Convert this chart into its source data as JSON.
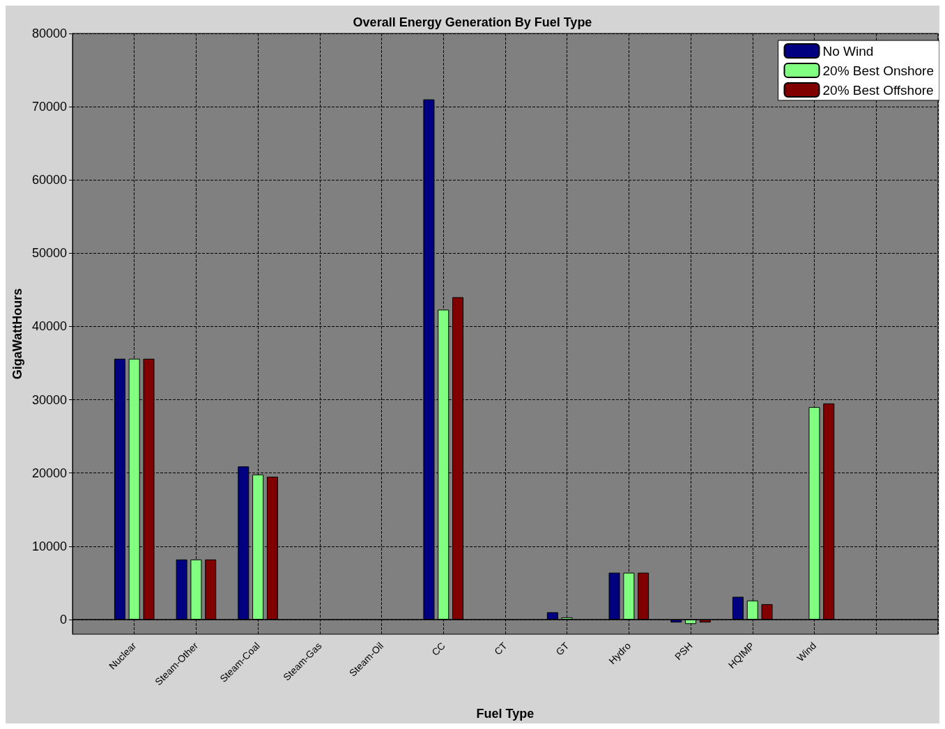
{
  "chart_data": {
    "type": "bar",
    "title": "Overall Energy Generation By Fuel Type",
    "xlabel": "Fuel Type",
    "ylabel": "GigaWattHours",
    "categories": [
      null,
      "Nuclear",
      "Steam-Other",
      "Steam-Coal",
      "Steam-Gas",
      "Steam-Oil",
      "CC",
      "CT",
      "GT",
      "Hydro",
      "PSH",
      "HQIMP",
      "Wind",
      null,
      null
    ],
    "series": [
      {
        "name": "No Wind",
        "color": "#000080",
        "values": [
          null,
          35600,
          8200,
          20900,
          null,
          null,
          71000,
          null,
          1000,
          6400,
          -400,
          3100,
          null,
          null,
          null
        ]
      },
      {
        "name": "20% Best Onshore",
        "color": "#80ff80",
        "values": [
          null,
          35600,
          8200,
          19800,
          null,
          null,
          42300,
          null,
          300,
          6400,
          -600,
          2600,
          29000,
          null,
          null
        ]
      },
      {
        "name": "20% Best Offshore",
        "color": "#800000",
        "values": [
          null,
          35600,
          8200,
          19500,
          null,
          null,
          44000,
          null,
          null,
          6400,
          -400,
          2100,
          29500,
          null,
          null
        ]
      }
    ],
    "ylim": [
      -2000,
      80000
    ],
    "yticks": [
      0,
      10000,
      20000,
      30000,
      40000,
      50000,
      60000,
      70000,
      80000
    ],
    "grid": true,
    "legend": "top right"
  }
}
